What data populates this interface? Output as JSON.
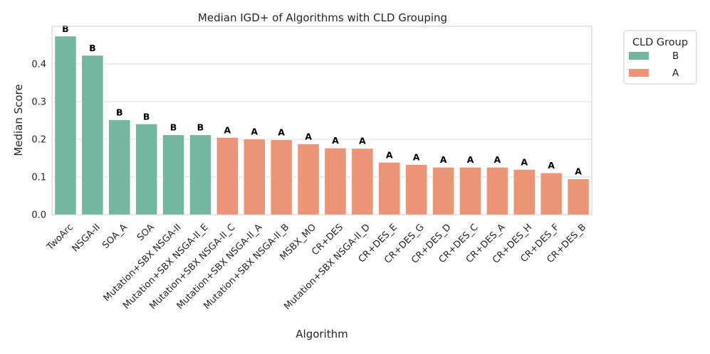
{
  "chart_data": {
    "type": "bar",
    "title": "Median IGD+ of Algorithms with CLD Grouping",
    "xlabel": "Algorithm",
    "ylabel": "Median Score",
    "ylim": [
      0,
      0.5
    ],
    "yticks": [
      0.0,
      0.1,
      0.2,
      0.3,
      0.4
    ],
    "ytick_labels": [
      "0.0",
      "0.1",
      "0.2",
      "0.3",
      "0.4"
    ],
    "grid": "y",
    "categories": [
      "TwoArc",
      "NSGA-II",
      "SOA_A",
      "SOA",
      "Mutation+SBX NSGA-II",
      "Mutation+SBX NSGA-II_E",
      "Mutation+SBX NSGA-II_C",
      "Mutation+SBX NSGA-II_A",
      "Mutation+SBX NSGA-II_B",
      "MSBX_MO",
      "CR+DES",
      "Mutation+SBX NSGA-II_D",
      "CR+DES_E",
      "CR+DES_G",
      "CR+DES_D",
      "CR+DES_C",
      "CR+DES_A",
      "CR+DES_H",
      "CR+DES_F",
      "CR+DES_B"
    ],
    "values": [
      0.474,
      0.423,
      0.252,
      0.241,
      0.212,
      0.212,
      0.205,
      0.201,
      0.199,
      0.188,
      0.177,
      0.176,
      0.139,
      0.133,
      0.126,
      0.126,
      0.126,
      0.12,
      0.111,
      0.095
    ],
    "groups": [
      "B",
      "B",
      "B",
      "B",
      "B",
      "B",
      "A",
      "A",
      "A",
      "A",
      "A",
      "A",
      "A",
      "A",
      "A",
      "A",
      "A",
      "A",
      "A",
      "A"
    ],
    "legend": {
      "title": "CLD Group",
      "placement": "outside-top-right",
      "entries": [
        {
          "label": "B",
          "color": "#72b8a0"
        },
        {
          "label": "A",
          "color": "#ec9576"
        }
      ]
    }
  }
}
